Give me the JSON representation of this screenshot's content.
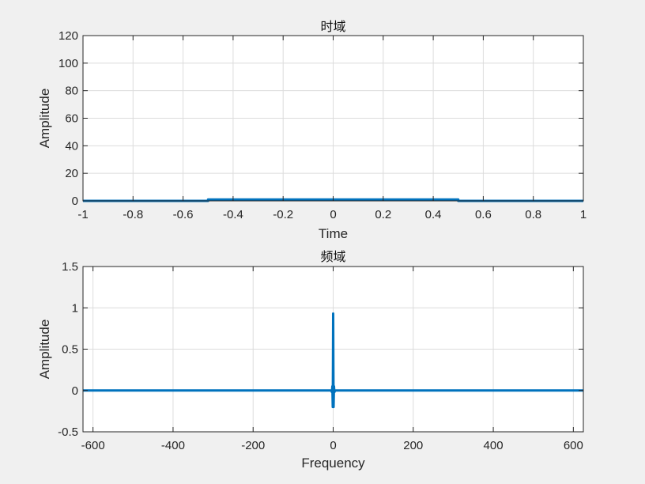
{
  "chart_data": [
    {
      "type": "line",
      "title": "时域",
      "xlabel": "Time",
      "ylabel": "Amplitude",
      "xlim": [
        -1,
        1
      ],
      "ylim": [
        0,
        120
      ],
      "grid": true,
      "xticks": [
        -1,
        -0.8,
        -0.6,
        -0.4,
        -0.2,
        0,
        0.2,
        0.4,
        0.6,
        0.8,
        1
      ],
      "yticks": [
        0,
        20,
        40,
        60,
        80,
        100,
        120
      ],
      "series": [
        {
          "x": [
            -1,
            -0.5,
            -0.5,
            0.5,
            0.5,
            1
          ],
          "y": [
            0,
            0,
            1,
            1,
            0,
            0
          ]
        }
      ],
      "color": "#0072BD"
    },
    {
      "type": "line",
      "title": "频域",
      "xlabel": "Frequency",
      "ylabel": "Amplitude",
      "xlim": [
        -625,
        625
      ],
      "ylim": [
        -0.5,
        1.5
      ],
      "grid": true,
      "xticks": [
        -600,
        -400,
        -200,
        0,
        200,
        400,
        600
      ],
      "yticks": [
        -0.5,
        0,
        0.5,
        1,
        1.5
      ],
      "series": [
        {
          "x": [
            -625,
            -5,
            -3,
            -2,
            -1,
            -0.5,
            0,
            0.5,
            1,
            2,
            3,
            5,
            625
          ],
          "y": [
            0,
            0,
            -0.02,
            0.05,
            -0.2,
            0.3,
            0.93,
            0.3,
            -0.2,
            0.05,
            -0.02,
            0,
            0
          ]
        }
      ],
      "color": "#0072BD"
    }
  ]
}
